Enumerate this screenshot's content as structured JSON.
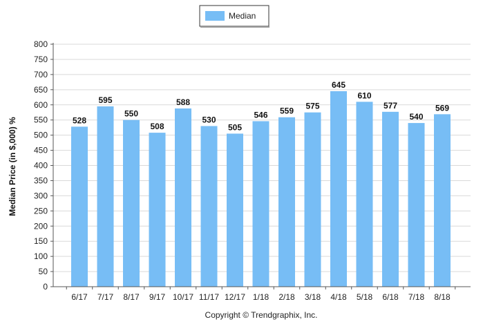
{
  "chart_data": {
    "type": "bar",
    "categories": [
      "6/17",
      "7/17",
      "8/17",
      "9/17",
      "10/17",
      "11/17",
      "12/17",
      "1/18",
      "2/18",
      "3/18",
      "4/18",
      "5/18",
      "6/18",
      "7/18",
      "8/18"
    ],
    "series": [
      {
        "name": "Median",
        "values": [
          528,
          595,
          550,
          508,
          588,
          530,
          505,
          546,
          559,
          575,
          645,
          610,
          577,
          540,
          569
        ]
      }
    ],
    "ylabel": "Median Price (in $,000) %",
    "xlabel": "",
    "ylim": [
      0,
      800
    ],
    "ytick_step": 50,
    "grid": true,
    "legend": "top-center",
    "bar_color": "#77bdf5",
    "gridline_color": "#d9d9d9"
  },
  "footer": {
    "copyright": "Copyright © Trendgraphix, Inc."
  }
}
